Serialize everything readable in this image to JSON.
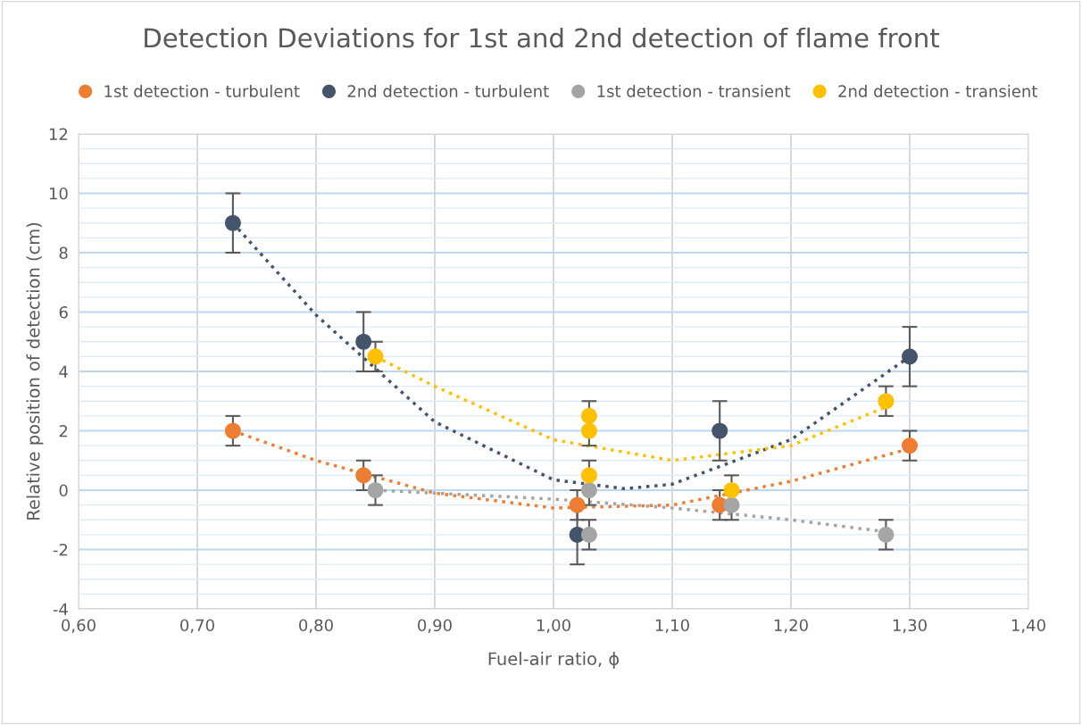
{
  "chart_data": {
    "type": "scatter",
    "title": "Detection Deviations for 1st and 2nd detection of flame front",
    "xlabel": "Fuel-air ratio, ϕ",
    "ylabel": "Relative position of detection (cm)",
    "xlim": [
      0.6,
      1.4
    ],
    "ylim": [
      -4,
      12
    ],
    "xticks": [
      {
        "value": 0.6,
        "label": "0,60"
      },
      {
        "value": 0.7,
        "label": "0,70"
      },
      {
        "value": 0.8,
        "label": "0,80"
      },
      {
        "value": 0.9,
        "label": "0,90"
      },
      {
        "value": 1.0,
        "label": "1,00"
      },
      {
        "value": 1.1,
        "label": "1,10"
      },
      {
        "value": 1.2,
        "label": "1,20"
      },
      {
        "value": 1.3,
        "label": "1,30"
      },
      {
        "value": 1.4,
        "label": "1,40"
      }
    ],
    "yticks": [
      -4,
      -2,
      0,
      2,
      4,
      6,
      8,
      10,
      12
    ],
    "grid": true,
    "legend": "top",
    "marker": "circle",
    "series": [
      {
        "name": "1st detection - turbulent",
        "color": "#ed7d31",
        "x": [
          0.73,
          0.84,
          1.02,
          1.14,
          1.3
        ],
        "values": [
          2,
          0.5,
          -0.5,
          -0.5,
          1.5
        ],
        "errors": [
          0.5,
          0.5,
          0.5,
          0.5,
          0.5
        ]
      },
      {
        "name": "2nd detection - turbulent",
        "color": "#44546a",
        "x": [
          0.73,
          0.84,
          1.02,
          1.14,
          1.3
        ],
        "values": [
          9,
          5,
          -1.5,
          2,
          4.5
        ],
        "errors": [
          1,
          1,
          1,
          1,
          1
        ]
      },
      {
        "name": "1st detection - transient",
        "color": "#a5a5a5",
        "x": [
          0.85,
          1.03,
          1.03,
          1.15,
          1.28
        ],
        "values": [
          0,
          0,
          -1.5,
          -0.5,
          -1.5
        ],
        "errors": [
          0.5,
          0.5,
          0.5,
          0.5,
          0.5
        ]
      },
      {
        "name": "2nd detection - transient",
        "color": "#ffc000",
        "x": [
          0.85,
          1.03,
          1.03,
          1.03,
          1.15,
          1.28
        ],
        "values": [
          4.5,
          2.5,
          2,
          0.5,
          0,
          3
        ],
        "errors": [
          0.5,
          0.5,
          0.5,
          0.5,
          0.5,
          0.5
        ]
      },
      {
        "type": "line",
        "line_style": "dotted",
        "marker": "none",
        "color": "#ed7d31",
        "x": [
          0.73,
          0.8,
          0.9,
          1.0,
          1.1,
          1.2,
          1.3
        ],
        "values": [
          2,
          1.0,
          -0.1,
          -0.6,
          -0.5,
          0.3,
          1.4
        ]
      },
      {
        "type": "line",
        "line_style": "dotted",
        "marker": "none",
        "color": "#44546a",
        "x": [
          0.73,
          0.8,
          0.9,
          1.0,
          1.06,
          1.1,
          1.2,
          1.3
        ],
        "values": [
          9,
          5.9,
          2.3,
          0.35,
          0.05,
          0.2,
          1.7,
          4.5
        ]
      },
      {
        "type": "line",
        "line_style": "dotted",
        "marker": "none",
        "color": "#a5a5a5",
        "x": [
          0.85,
          0.9,
          1.0,
          1.1,
          1.2,
          1.28
        ],
        "values": [
          0,
          -0.1,
          -0.3,
          -0.6,
          -1.0,
          -1.4
        ]
      },
      {
        "type": "line",
        "line_style": "dotted",
        "marker": "none",
        "color": "#ffc000",
        "x": [
          0.85,
          0.9,
          1.0,
          1.1,
          1.2,
          1.28
        ],
        "values": [
          4.5,
          3.5,
          1.7,
          1.0,
          1.5,
          2.8
        ]
      }
    ]
  }
}
